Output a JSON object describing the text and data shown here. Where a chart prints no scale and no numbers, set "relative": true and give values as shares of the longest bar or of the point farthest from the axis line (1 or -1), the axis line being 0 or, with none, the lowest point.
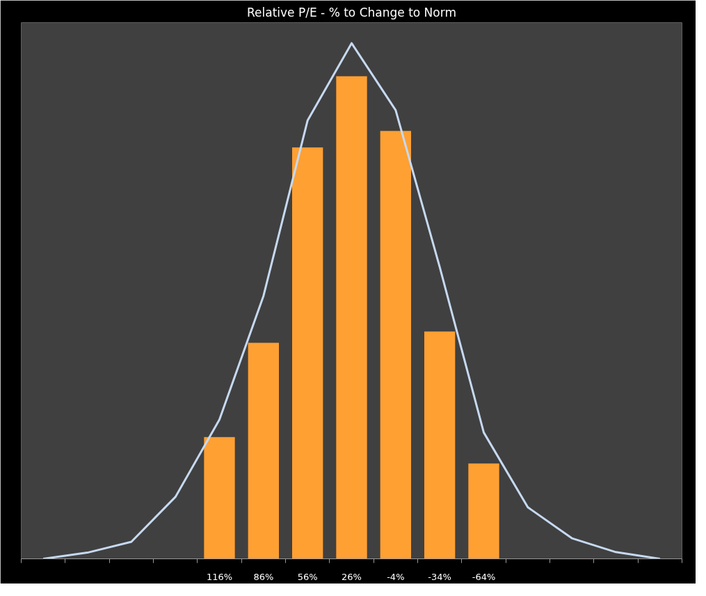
{
  "chart_data": {
    "type": "bar",
    "title": "Relative P/E - % to Change to Norm",
    "relative": true,
    "grid": false,
    "categories": [
      null,
      null,
      null,
      null,
      "116%",
      "86%",
      "56%",
      "26%",
      "-4%",
      "-34%",
      "-64%",
      null,
      null,
      null,
      null
    ],
    "series": [
      {
        "color": "#ffa033",
        "values": [
          null,
          null,
          null,
          null,
          0.236,
          0.419,
          0.798,
          0.936,
          0.83,
          0.441,
          0.185,
          null,
          null,
          null,
          null
        ]
      },
      {
        "type": "line",
        "color": "#c6d9f1",
        "values": [
          0,
          0.012,
          0.033,
          0.12,
          0.27,
          0.51,
          0.85,
          1,
          0.87,
          0.566,
          0.245,
          0.1,
          0.04,
          0.013,
          0
        ]
      }
    ]
  }
}
